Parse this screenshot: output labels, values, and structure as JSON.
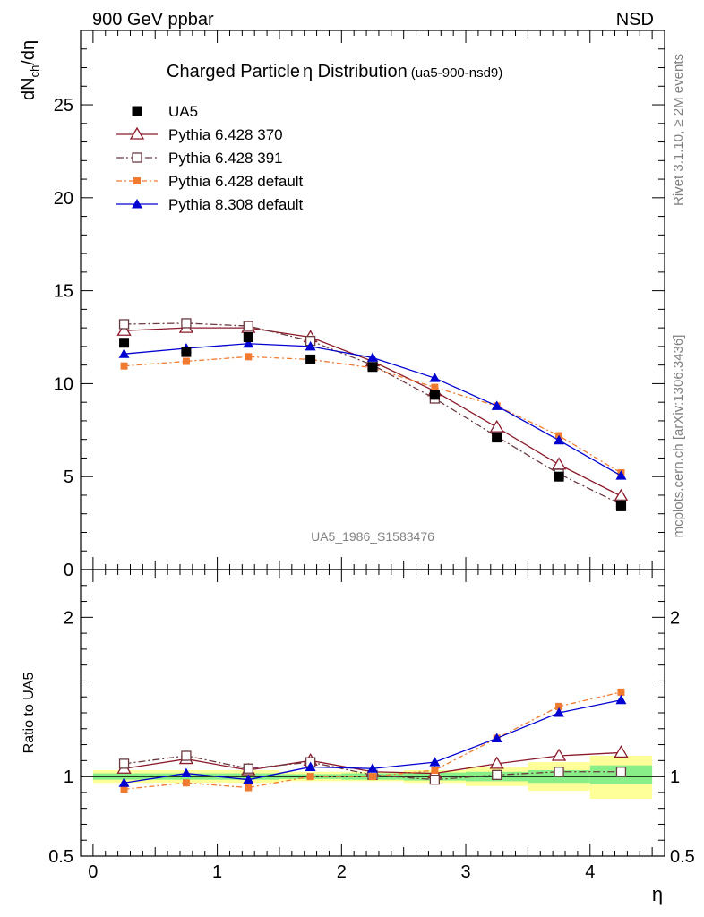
{
  "header": {
    "left": "900 GeV ppbar",
    "right": "NSD",
    "rivet": "Rivet 3.1.10, ≥ 2M events",
    "mcplots": "mcplots.cern.ch [arXiv:1306.3436]"
  },
  "chart_data": [
    {
      "type": "scatter",
      "title": "Charged Particle",
      "title_symbol": "η",
      "title_rest": " Distribution",
      "title_tag": "(ua5-900-nsd9)",
      "ylabel_main": "dN",
      "ylabel_sub": "ch",
      "ylabel_tail": "/dη",
      "watermark": "UA5_1986_S1583476",
      "xlim": [
        -0.1,
        4.6
      ],
      "ylim": [
        0,
        29
      ],
      "y_ticks": [
        0,
        5,
        10,
        15,
        20,
        25
      ],
      "y_tick_labels": [
        "0",
        "5",
        "10",
        "15",
        "20",
        "25"
      ],
      "x": [
        0.25,
        0.75,
        1.25,
        1.75,
        2.25,
        2.75,
        3.25,
        3.75,
        4.25
      ],
      "series": [
        {
          "name": "UA5",
          "color": "#000000",
          "marker": "square-filled",
          "line": "none",
          "values": [
            12.2,
            11.7,
            12.5,
            11.3,
            10.9,
            9.4,
            7.1,
            5.0,
            3.4
          ]
        },
        {
          "name": "Pythia 6.428 370",
          "color": "#8b1a2b",
          "marker": "triangle-open",
          "line": "solid",
          "values": [
            12.85,
            13.0,
            13.0,
            12.5,
            11.2,
            9.6,
            7.65,
            5.65,
            3.95
          ]
        },
        {
          "name": "Pythia 6.428 391",
          "color": "#6b3a40",
          "marker": "square-open",
          "line": "dashdot",
          "values": [
            13.2,
            13.25,
            13.1,
            12.3,
            11.0,
            9.2,
            7.15,
            5.15,
            3.5
          ]
        },
        {
          "name": "Pythia 6.428 default",
          "color": "#f07b30",
          "marker": "square-filled-small",
          "line": "dashdot-orange",
          "values": [
            10.95,
            11.2,
            11.45,
            11.3,
            10.85,
            9.8,
            8.8,
            7.2,
            5.2
          ]
        },
        {
          "name": "Pythia 8.308 default",
          "color": "#0000d0",
          "marker": "triangle-filled",
          "line": "solid",
          "values": [
            11.6,
            11.9,
            12.15,
            12.0,
            11.4,
            10.3,
            8.8,
            6.95,
            5.05
          ]
        }
      ]
    },
    {
      "type": "scatter",
      "ylabel": "Ratio to UA5",
      "xlabel": "η",
      "xlim": [
        -0.1,
        4.6
      ],
      "ylim": [
        0.5,
        2.3
      ],
      "x_ticks": [
        0,
        1,
        2,
        3,
        4
      ],
      "x_tick_labels": [
        "0",
        "1",
        "2",
        "3",
        "4"
      ],
      "y_ticks": [
        0.5,
        1,
        2
      ],
      "y_tick_labels": [
        "0.5",
        "1",
        "2"
      ],
      "band_edges": [
        0,
        0.5,
        1.0,
        1.5,
        2.0,
        2.5,
        3.0,
        3.5,
        4.0,
        4.5
      ],
      "band_inner": [
        [
          0.98,
          1.02
        ],
        [
          0.98,
          1.02
        ],
        [
          0.98,
          1.02
        ],
        [
          0.985,
          1.015
        ],
        [
          0.98,
          1.02
        ],
        [
          0.975,
          1.025
        ],
        [
          0.97,
          1.03
        ],
        [
          0.96,
          1.04
        ],
        [
          0.95,
          1.07
        ]
      ],
      "band_outer": [
        [
          0.96,
          1.04
        ],
        [
          0.96,
          1.04
        ],
        [
          0.96,
          1.04
        ],
        [
          0.97,
          1.03
        ],
        [
          0.97,
          1.03
        ],
        [
          0.96,
          1.04
        ],
        [
          0.94,
          1.06
        ],
        [
          0.91,
          1.09
        ],
        [
          0.86,
          1.13
        ]
      ],
      "band_inner_color": "#88ee88",
      "band_outer_color": "#ffff99",
      "x": [
        0.25,
        0.75,
        1.25,
        1.75,
        2.25,
        2.75,
        3.25,
        3.75,
        4.25
      ],
      "series": [
        {
          "name": "Pythia 6.428 370",
          "color": "#8b1a2b",
          "marker": "triangle-open",
          "line": "solid",
          "values": [
            1.05,
            1.11,
            1.04,
            1.1,
            1.03,
            1.02,
            1.08,
            1.13,
            1.15
          ]
        },
        {
          "name": "Pythia 6.428 391",
          "color": "#6b3a40",
          "marker": "square-open",
          "line": "dashdot",
          "values": [
            1.08,
            1.13,
            1.05,
            1.09,
            1.01,
            0.98,
            1.01,
            1.03,
            1.03
          ]
        },
        {
          "name": "Pythia 6.428 default",
          "color": "#f07b30",
          "marker": "square-filled-small",
          "line": "dashdot-orange",
          "values": [
            0.92,
            0.96,
            0.93,
            1.0,
            1.0,
            1.04,
            1.24,
            1.44,
            1.53
          ]
        },
        {
          "name": "Pythia 8.308 default",
          "color": "#0000d0",
          "marker": "triangle-filled",
          "line": "solid",
          "values": [
            0.96,
            1.02,
            0.98,
            1.06,
            1.05,
            1.09,
            1.24,
            1.4,
            1.48
          ]
        }
      ]
    }
  ]
}
